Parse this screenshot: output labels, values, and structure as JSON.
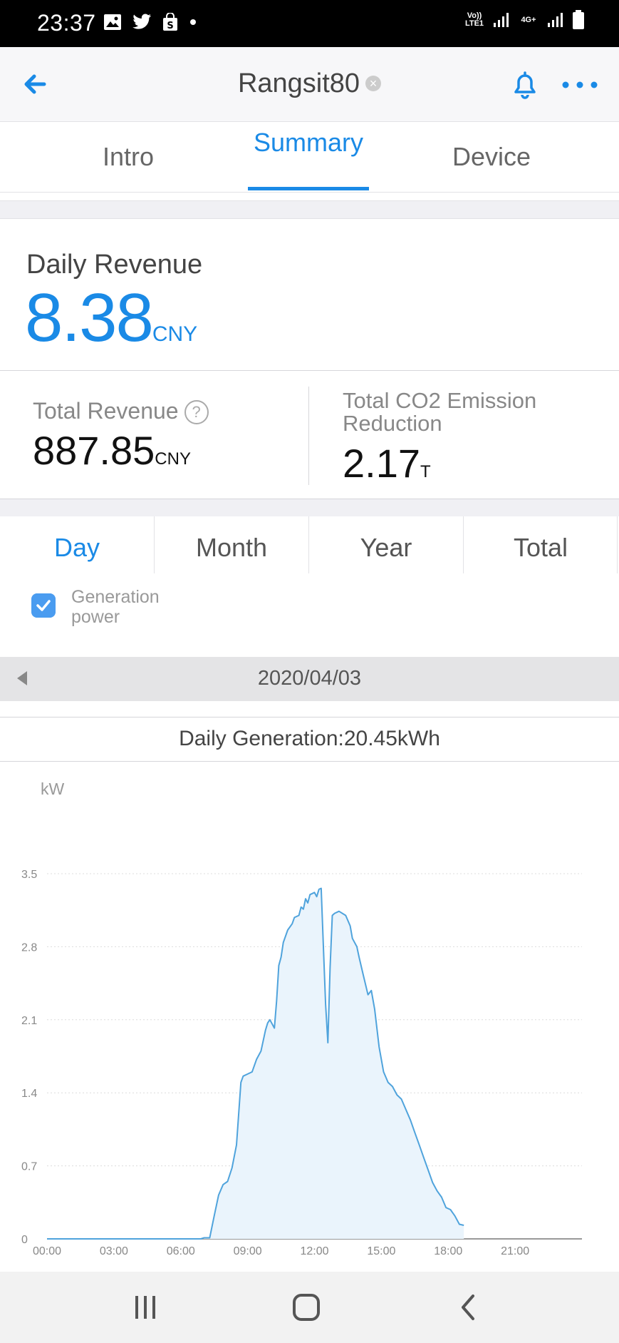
{
  "status_bar": {
    "time": "23:37",
    "icons": [
      "gallery-icon",
      "twitter-icon",
      "shopping-bag-icon",
      "dot-icon"
    ],
    "network_left": "Vo)) LTE1",
    "network_right": "4G+"
  },
  "header": {
    "title": "Rangsit80",
    "back_icon": "back-arrow-icon",
    "bell_icon": "bell-icon",
    "more_icon": "more-icon"
  },
  "tabs": [
    "Intro",
    "Summary",
    "Device"
  ],
  "active_tab": "Summary",
  "daily_revenue": {
    "label": "Daily Revenue",
    "value": "8.38",
    "unit": "CNY"
  },
  "total_revenue": {
    "label": "Total Revenue",
    "value": "887.85",
    "unit": "CNY"
  },
  "co2": {
    "label": "Total CO2 Emission Reduction",
    "value": "2.17",
    "unit": "T"
  },
  "period_tabs": [
    "Day",
    "Month",
    "Year",
    "Total"
  ],
  "active_period": "Day",
  "legend": {
    "label": "Generation power",
    "checked": true
  },
  "date_nav": {
    "date": "2020/04/03"
  },
  "daily_generation": "Daily Generation:20.45kWh",
  "colors": {
    "accent": "#1a8ae6",
    "line": "#4fa3dc",
    "fill": "#eaf4fc"
  },
  "chart_data": {
    "type": "area",
    "unit_label": "kW",
    "x_ticks": [
      "00:00",
      "03:00",
      "06:00",
      "09:00",
      "12:00",
      "15:00",
      "18:00",
      "21:00"
    ],
    "y_ticks": [
      "0",
      "0.7",
      "1.4",
      "2.1",
      "2.8",
      "3.5"
    ],
    "xlim": [
      0,
      24
    ],
    "ylim": [
      0,
      3.5
    ],
    "grid": true,
    "series": [
      {
        "name": "Generation power",
        "points": [
          [
            0,
            0
          ],
          [
            6.9,
            0
          ],
          [
            7.05,
            0.01
          ],
          [
            7.3,
            0.01
          ],
          [
            7.5,
            0.22
          ],
          [
            7.7,
            0.42
          ],
          [
            7.9,
            0.52
          ],
          [
            8.1,
            0.55
          ],
          [
            8.3,
            0.68
          ],
          [
            8.5,
            0.9
          ],
          [
            8.7,
            1.5
          ],
          [
            8.8,
            1.56
          ],
          [
            9.0,
            1.58
          ],
          [
            9.2,
            1.6
          ],
          [
            9.4,
            1.72
          ],
          [
            9.6,
            1.8
          ],
          [
            9.8,
            2.0
          ],
          [
            9.9,
            2.07
          ],
          [
            10.0,
            2.1
          ],
          [
            10.2,
            2.02
          ],
          [
            10.3,
            2.28
          ],
          [
            10.4,
            2.62
          ],
          [
            10.5,
            2.7
          ],
          [
            10.6,
            2.84
          ],
          [
            10.8,
            2.96
          ],
          [
            11.0,
            3.02
          ],
          [
            11.1,
            3.08
          ],
          [
            11.3,
            3.1
          ],
          [
            11.4,
            3.18
          ],
          [
            11.5,
            3.16
          ],
          [
            11.6,
            3.26
          ],
          [
            11.7,
            3.22
          ],
          [
            11.8,
            3.3
          ],
          [
            12.0,
            3.32
          ],
          [
            12.1,
            3.28
          ],
          [
            12.2,
            3.35
          ],
          [
            12.3,
            3.36
          ],
          [
            12.4,
            2.8
          ],
          [
            12.5,
            2.25
          ],
          [
            12.6,
            1.88
          ],
          [
            12.7,
            2.6
          ],
          [
            12.8,
            3.1
          ],
          [
            12.9,
            3.12
          ],
          [
            13.1,
            3.14
          ],
          [
            13.4,
            3.1
          ],
          [
            13.6,
            3.0
          ],
          [
            13.7,
            2.88
          ],
          [
            13.9,
            2.8
          ],
          [
            14.0,
            2.7
          ],
          [
            14.2,
            2.52
          ],
          [
            14.4,
            2.34
          ],
          [
            14.55,
            2.38
          ],
          [
            14.7,
            2.2
          ],
          [
            14.9,
            1.84
          ],
          [
            15.1,
            1.6
          ],
          [
            15.3,
            1.5
          ],
          [
            15.5,
            1.46
          ],
          [
            15.7,
            1.38
          ],
          [
            15.9,
            1.34
          ],
          [
            16.1,
            1.24
          ],
          [
            16.3,
            1.14
          ],
          [
            16.5,
            1.02
          ],
          [
            16.7,
            0.9
          ],
          [
            16.9,
            0.78
          ],
          [
            17.1,
            0.66
          ],
          [
            17.3,
            0.54
          ],
          [
            17.5,
            0.46
          ],
          [
            17.7,
            0.4
          ],
          [
            17.9,
            0.3
          ],
          [
            18.1,
            0.28
          ],
          [
            18.3,
            0.22
          ],
          [
            18.5,
            0.14
          ],
          [
            18.7,
            0.13
          ]
        ]
      }
    ]
  }
}
